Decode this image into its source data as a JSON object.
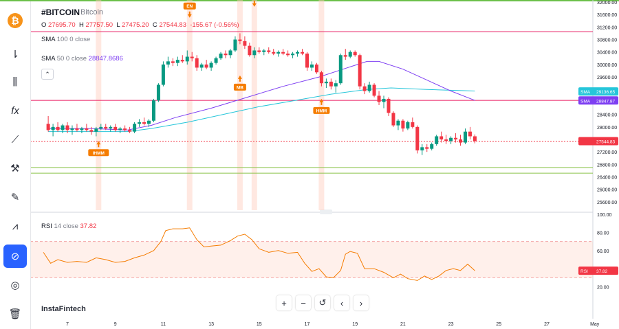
{
  "header": {
    "symbol": "#BITCOIN",
    "name": "Bitcoin",
    "o_label": "O",
    "o_value": "27695.70",
    "h_label": "H",
    "h_value": "27757.50",
    "l_label": "L",
    "l_value": "27475.20",
    "c_label": "C",
    "c_value": "27544.83",
    "change": "-155.67 (-0.56%)"
  },
  "indicators": {
    "sma100_label": "SMA",
    "sma100_params": "100 0 close",
    "sma50_label": "SMA",
    "sma50_params": "50 0 close",
    "sma50_value": "28847.8686",
    "rsi_label": "RSI",
    "rsi_params": "14 close",
    "rsi_value": "37.82"
  },
  "branding": "InstaFintech",
  "price_tags": {
    "sma100": {
      "label": "SMA",
      "value": "29136.65",
      "color": "#26c6da"
    },
    "sma50": {
      "label": "SMA",
      "value": "28847.87",
      "color": "#7e3ff2"
    },
    "close": {
      "value": "27544.83",
      "color": "#f23645"
    },
    "rsi": {
      "label": "RSI",
      "value": "37.82",
      "color": "#f23645"
    }
  },
  "navigation": {
    "zoom_in": "+",
    "zoom_out": "−",
    "reset": "↺",
    "scroll_left": "‹",
    "scroll_right": "›"
  },
  "sidebar": {
    "logo": "bitcoin-logo",
    "tools": [
      "indicators-icon",
      "candles-icon",
      "fx-icon",
      "trendline-icon",
      "brush-icon",
      "pen-icon",
      "patterns-icon",
      "magnet-icon",
      "eye-off-icon",
      "trash-icon"
    ]
  },
  "chart_data": {
    "type": "candlestick",
    "y_ticks": [
      "32000.00",
      "31600.00",
      "31200.00",
      "30800.00",
      "30400.00",
      "30000.00",
      "29600.00",
      "29200.00",
      "28800.00",
      "28400.00",
      "28000.00",
      "27600.00",
      "27200.00",
      "26800.00",
      "26400.00",
      "26000.00",
      "25600.00"
    ],
    "ylim": [
      25400,
      32000
    ],
    "x_ticks": [
      "7",
      "9",
      "11",
      "13",
      "15",
      "17",
      "19",
      "21",
      "23",
      "25",
      "27",
      "May"
    ],
    "candles": [
      {
        "d": 6.2,
        "o": 28100,
        "h": 28350,
        "l": 27850,
        "c": 27900
      },
      {
        "d": 6.4,
        "o": 27900,
        "h": 28100,
        "l": 27700,
        "c": 28000
      },
      {
        "d": 6.6,
        "o": 28000,
        "h": 28150,
        "l": 27850,
        "c": 27900
      },
      {
        "d": 6.8,
        "o": 27900,
        "h": 28100,
        "l": 27800,
        "c": 28050
      },
      {
        "d": 7.0,
        "o": 28050,
        "h": 28150,
        "l": 27800,
        "c": 27900
      },
      {
        "d": 7.2,
        "o": 27900,
        "h": 28050,
        "l": 27750,
        "c": 27950
      },
      {
        "d": 7.4,
        "o": 27950,
        "h": 28100,
        "l": 27850,
        "c": 27900
      },
      {
        "d": 7.6,
        "o": 27900,
        "h": 28000,
        "l": 27800,
        "c": 27950
      },
      {
        "d": 7.8,
        "o": 27950,
        "h": 28100,
        "l": 27850,
        "c": 27900
      },
      {
        "d": 8.0,
        "o": 27900,
        "h": 28000,
        "l": 27750,
        "c": 27850
      },
      {
        "d": 8.2,
        "o": 27850,
        "h": 28000,
        "l": 27700,
        "c": 27950
      },
      {
        "d": 8.4,
        "o": 27950,
        "h": 28100,
        "l": 27900,
        "c": 28000
      },
      {
        "d": 8.6,
        "o": 28000,
        "h": 28100,
        "l": 27900,
        "c": 27950
      },
      {
        "d": 8.8,
        "o": 27950,
        "h": 28050,
        "l": 27850,
        "c": 28000
      },
      {
        "d": 9.0,
        "o": 28000,
        "h": 28100,
        "l": 27850,
        "c": 27900
      },
      {
        "d": 9.2,
        "o": 27900,
        "h": 28000,
        "l": 27800,
        "c": 27950
      },
      {
        "d": 9.4,
        "o": 27950,
        "h": 28050,
        "l": 27850,
        "c": 27900
      },
      {
        "d": 9.6,
        "o": 27900,
        "h": 28000,
        "l": 27800,
        "c": 27850
      },
      {
        "d": 9.8,
        "o": 27850,
        "h": 28150,
        "l": 27800,
        "c": 28100
      },
      {
        "d": 10.0,
        "o": 28100,
        "h": 28250,
        "l": 28000,
        "c": 28150
      },
      {
        "d": 10.2,
        "o": 28150,
        "h": 28300,
        "l": 28050,
        "c": 28100
      },
      {
        "d": 10.4,
        "o": 28100,
        "h": 28250,
        "l": 28000,
        "c": 28200
      },
      {
        "d": 10.6,
        "o": 28200,
        "h": 28900,
        "l": 28150,
        "c": 28850
      },
      {
        "d": 10.8,
        "o": 28850,
        "h": 29400,
        "l": 28800,
        "c": 29350
      },
      {
        "d": 11.0,
        "o": 29350,
        "h": 30100,
        "l": 29300,
        "c": 30000
      },
      {
        "d": 11.2,
        "o": 30000,
        "h": 30250,
        "l": 29900,
        "c": 30100
      },
      {
        "d": 11.4,
        "o": 30100,
        "h": 30200,
        "l": 29950,
        "c": 30050
      },
      {
        "d": 11.6,
        "o": 30050,
        "h": 30250,
        "l": 29950,
        "c": 30150
      },
      {
        "d": 11.8,
        "o": 30150,
        "h": 30300,
        "l": 30050,
        "c": 30100
      },
      {
        "d": 12.0,
        "o": 30100,
        "h": 30450,
        "l": 30000,
        "c": 30250
      },
      {
        "d": 12.2,
        "o": 30250,
        "h": 30400,
        "l": 30100,
        "c": 30200
      },
      {
        "d": 12.4,
        "o": 30200,
        "h": 30300,
        "l": 29800,
        "c": 29900
      },
      {
        "d": 12.6,
        "o": 29900,
        "h": 30050,
        "l": 29800,
        "c": 30000
      },
      {
        "d": 12.8,
        "o": 30000,
        "h": 30150,
        "l": 29850,
        "c": 29900
      },
      {
        "d": 13.0,
        "o": 29900,
        "h": 30100,
        "l": 29800,
        "c": 30050
      },
      {
        "d": 13.2,
        "o": 30050,
        "h": 30250,
        "l": 30000,
        "c": 30200
      },
      {
        "d": 13.4,
        "o": 30200,
        "h": 30400,
        "l": 30150,
        "c": 30350
      },
      {
        "d": 13.6,
        "o": 30350,
        "h": 30450,
        "l": 30200,
        "c": 30300
      },
      {
        "d": 13.8,
        "o": 30300,
        "h": 30500,
        "l": 30200,
        "c": 30450
      },
      {
        "d": 14.0,
        "o": 30450,
        "h": 30900,
        "l": 30400,
        "c": 30800
      },
      {
        "d": 14.2,
        "o": 30800,
        "h": 31000,
        "l": 30650,
        "c": 30750
      },
      {
        "d": 14.4,
        "o": 30750,
        "h": 30900,
        "l": 30500,
        "c": 30600
      },
      {
        "d": 14.6,
        "o": 30600,
        "h": 30700,
        "l": 30250,
        "c": 30300
      },
      {
        "d": 14.8,
        "o": 30300,
        "h": 30550,
        "l": 30200,
        "c": 30450
      },
      {
        "d": 15.0,
        "o": 30450,
        "h": 30550,
        "l": 30350,
        "c": 30400
      },
      {
        "d": 15.2,
        "o": 30400,
        "h": 30500,
        "l": 30300,
        "c": 30450
      },
      {
        "d": 15.4,
        "o": 30450,
        "h": 30550,
        "l": 30350,
        "c": 30400
      },
      {
        "d": 15.6,
        "o": 30400,
        "h": 30500,
        "l": 30300,
        "c": 30350
      },
      {
        "d": 15.8,
        "o": 30350,
        "h": 30450,
        "l": 30250,
        "c": 30400
      },
      {
        "d": 16.0,
        "o": 30400,
        "h": 30500,
        "l": 30300,
        "c": 30350
      },
      {
        "d": 16.2,
        "o": 30350,
        "h": 30450,
        "l": 30250,
        "c": 30300
      },
      {
        "d": 16.4,
        "o": 30300,
        "h": 30400,
        "l": 30200,
        "c": 30350
      },
      {
        "d": 16.6,
        "o": 30350,
        "h": 30450,
        "l": 30250,
        "c": 30400
      },
      {
        "d": 16.8,
        "o": 30400,
        "h": 30500,
        "l": 30300,
        "c": 30350
      },
      {
        "d": 17.0,
        "o": 30350,
        "h": 30400,
        "l": 29800,
        "c": 29900
      },
      {
        "d": 17.2,
        "o": 29900,
        "h": 30100,
        "l": 29800,
        "c": 30000
      },
      {
        "d": 17.4,
        "o": 30000,
        "h": 30050,
        "l": 29700,
        "c": 29750
      },
      {
        "d": 17.6,
        "o": 29750,
        "h": 29800,
        "l": 29300,
        "c": 29400
      },
      {
        "d": 17.8,
        "o": 29400,
        "h": 29550,
        "l": 29250,
        "c": 29450
      },
      {
        "d": 18.0,
        "o": 29450,
        "h": 29550,
        "l": 29200,
        "c": 29300
      },
      {
        "d": 18.2,
        "o": 29300,
        "h": 29500,
        "l": 29100,
        "c": 29400
      },
      {
        "d": 18.4,
        "o": 29400,
        "h": 30350,
        "l": 29350,
        "c": 30300
      },
      {
        "d": 18.6,
        "o": 30300,
        "h": 30500,
        "l": 30150,
        "c": 30250
      },
      {
        "d": 18.8,
        "o": 30250,
        "h": 30450,
        "l": 30200,
        "c": 30400
      },
      {
        "d": 19.0,
        "o": 30400,
        "h": 30450,
        "l": 30250,
        "c": 30300
      },
      {
        "d": 19.2,
        "o": 30300,
        "h": 30350,
        "l": 29200,
        "c": 29300
      },
      {
        "d": 19.4,
        "o": 29300,
        "h": 29400,
        "l": 29050,
        "c": 29150
      },
      {
        "d": 19.6,
        "o": 29150,
        "h": 29450,
        "l": 29100,
        "c": 29350
      },
      {
        "d": 19.8,
        "o": 29350,
        "h": 29400,
        "l": 28950,
        "c": 29000
      },
      {
        "d": 20.0,
        "o": 29000,
        "h": 29150,
        "l": 28700,
        "c": 28800
      },
      {
        "d": 20.2,
        "o": 28800,
        "h": 29000,
        "l": 28600,
        "c": 28900
      },
      {
        "d": 20.4,
        "o": 28900,
        "h": 28950,
        "l": 28350,
        "c": 28450
      },
      {
        "d": 20.6,
        "o": 28450,
        "h": 28500,
        "l": 28000,
        "c": 28050
      },
      {
        "d": 20.8,
        "o": 28050,
        "h": 28250,
        "l": 27900,
        "c": 28200
      },
      {
        "d": 21.0,
        "o": 28200,
        "h": 28250,
        "l": 27850,
        "c": 27950
      },
      {
        "d": 21.2,
        "o": 27950,
        "h": 28200,
        "l": 27900,
        "c": 28150
      },
      {
        "d": 21.4,
        "o": 28150,
        "h": 28300,
        "l": 27950,
        "c": 28000
      },
      {
        "d": 21.6,
        "o": 28000,
        "h": 28050,
        "l": 27150,
        "c": 27250
      },
      {
        "d": 21.8,
        "o": 27250,
        "h": 27450,
        "l": 27100,
        "c": 27350
      },
      {
        "d": 22.0,
        "o": 27350,
        "h": 27450,
        "l": 27200,
        "c": 27300
      },
      {
        "d": 22.2,
        "o": 27300,
        "h": 27500,
        "l": 27250,
        "c": 27450
      },
      {
        "d": 22.4,
        "o": 27450,
        "h": 27750,
        "l": 27400,
        "c": 27700
      },
      {
        "d": 22.6,
        "o": 27700,
        "h": 27850,
        "l": 27500,
        "c": 27600
      },
      {
        "d": 22.8,
        "o": 27600,
        "h": 27750,
        "l": 27450,
        "c": 27550
      },
      {
        "d": 23.0,
        "o": 27550,
        "h": 27700,
        "l": 27450,
        "c": 27650
      },
      {
        "d": 23.2,
        "o": 27650,
        "h": 27800,
        "l": 27500,
        "c": 27600
      },
      {
        "d": 23.4,
        "o": 27600,
        "h": 27750,
        "l": 27400,
        "c": 27500
      },
      {
        "d": 23.6,
        "o": 27500,
        "h": 27950,
        "l": 27450,
        "c": 27850
      },
      {
        "d": 23.8,
        "o": 27850,
        "h": 28000,
        "l": 27600,
        "c": 27700
      },
      {
        "d": 24.0,
        "o": 27700,
        "h": 27760,
        "l": 27475,
        "c": 27545
      }
    ],
    "sma50": [
      [
        6.2,
        27950
      ],
      [
        8,
        27950
      ],
      [
        9.5,
        27900
      ],
      [
        10.5,
        28050
      ],
      [
        11.5,
        28300
      ],
      [
        13,
        28600
      ],
      [
        14.5,
        28950
      ],
      [
        16,
        29300
      ],
      [
        17.5,
        29600
      ],
      [
        18.5,
        29850
      ],
      [
        19.5,
        30100
      ],
      [
        20,
        30100
      ],
      [
        21,
        29850
      ],
      [
        22,
        29500
      ],
      [
        23,
        29150
      ],
      [
        24,
        28850
      ]
    ],
    "sma100": [
      [
        6.2,
        27850
      ],
      [
        8,
        27850
      ],
      [
        9.5,
        27850
      ],
      [
        10.5,
        27950
      ],
      [
        12,
        28150
      ],
      [
        13.5,
        28400
      ],
      [
        15,
        28650
      ],
      [
        16.5,
        28850
      ],
      [
        18,
        29050
      ],
      [
        19.5,
        29200
      ],
      [
        20.5,
        29250
      ],
      [
        22,
        29200
      ],
      [
        24,
        29150
      ]
    ],
    "horizontal_lines": [
      {
        "value": 31050,
        "color": "#e91e63"
      },
      {
        "value": 28850,
        "color": "#e91e63"
      },
      {
        "value": 27545,
        "color": "#f23645",
        "style": "dotted"
      },
      {
        "value": 26700,
        "color": "#8bc34a"
      },
      {
        "value": 26520,
        "color": "#8bc34a"
      }
    ],
    "highlight_days": [
      8.3,
      12.1,
      14.2,
      14.8,
      17.6
    ],
    "markers": [
      {
        "label": "IHMM",
        "d": 8.3,
        "value": 27550,
        "direction": "up"
      },
      {
        "label": "EN",
        "d": 12.1,
        "value": 31500,
        "direction": "down"
      },
      {
        "label": "EN",
        "d": 14.8,
        "value": 31850,
        "direction": "down"
      },
      {
        "label": "MB",
        "d": 14.2,
        "value": 29650,
        "direction": "up"
      },
      {
        "label": "HMM",
        "d": 17.6,
        "value": 28900,
        "direction": "up"
      }
    ],
    "rsi": {
      "ylim": [
        0,
        100
      ],
      "y_ticks": [
        "100.00",
        "80.00",
        "60.00",
        "40.00",
        "20.00"
      ],
      "band": [
        30,
        70
      ],
      "values": [
        [
          6,
          58
        ],
        [
          6.3,
          46
        ],
        [
          6.6,
          50
        ],
        [
          7,
          47
        ],
        [
          7.4,
          48
        ],
        [
          7.8,
          47
        ],
        [
          8.2,
          52
        ],
        [
          8.6,
          50
        ],
        [
          9,
          47
        ],
        [
          9.4,
          48
        ],
        [
          9.8,
          52
        ],
        [
          10.2,
          55
        ],
        [
          10.6,
          60
        ],
        [
          10.9,
          70
        ],
        [
          11.1,
          82
        ],
        [
          11.4,
          84
        ],
        [
          11.8,
          84
        ],
        [
          12.1,
          85
        ],
        [
          12.4,
          72
        ],
        [
          12.7,
          64
        ],
        [
          13,
          65
        ],
        [
          13.4,
          66
        ],
        [
          13.8,
          71
        ],
        [
          14.1,
          76
        ],
        [
          14.4,
          78
        ],
        [
          14.7,
          72
        ],
        [
          15,
          62
        ],
        [
          15.4,
          58
        ],
        [
          15.8,
          60
        ],
        [
          16.2,
          57
        ],
        [
          16.6,
          58
        ],
        [
          16.9,
          46
        ],
        [
          17.2,
          37
        ],
        [
          17.5,
          40
        ],
        [
          17.8,
          31
        ],
        [
          18.1,
          30
        ],
        [
          18.4,
          38
        ],
        [
          18.6,
          56
        ],
        [
          18.8,
          59
        ],
        [
          19.1,
          57
        ],
        [
          19.4,
          40
        ],
        [
          19.8,
          40
        ],
        [
          20.2,
          36
        ],
        [
          20.6,
          30
        ],
        [
          20.9,
          34
        ],
        [
          21.2,
          29
        ],
        [
          21.6,
          27
        ],
        [
          21.9,
          32
        ],
        [
          22.2,
          28
        ],
        [
          22.5,
          32
        ],
        [
          22.8,
          38
        ],
        [
          23.1,
          40
        ],
        [
          23.4,
          38
        ],
        [
          23.7,
          45
        ],
        [
          24.0,
          37.82
        ]
      ]
    }
  }
}
